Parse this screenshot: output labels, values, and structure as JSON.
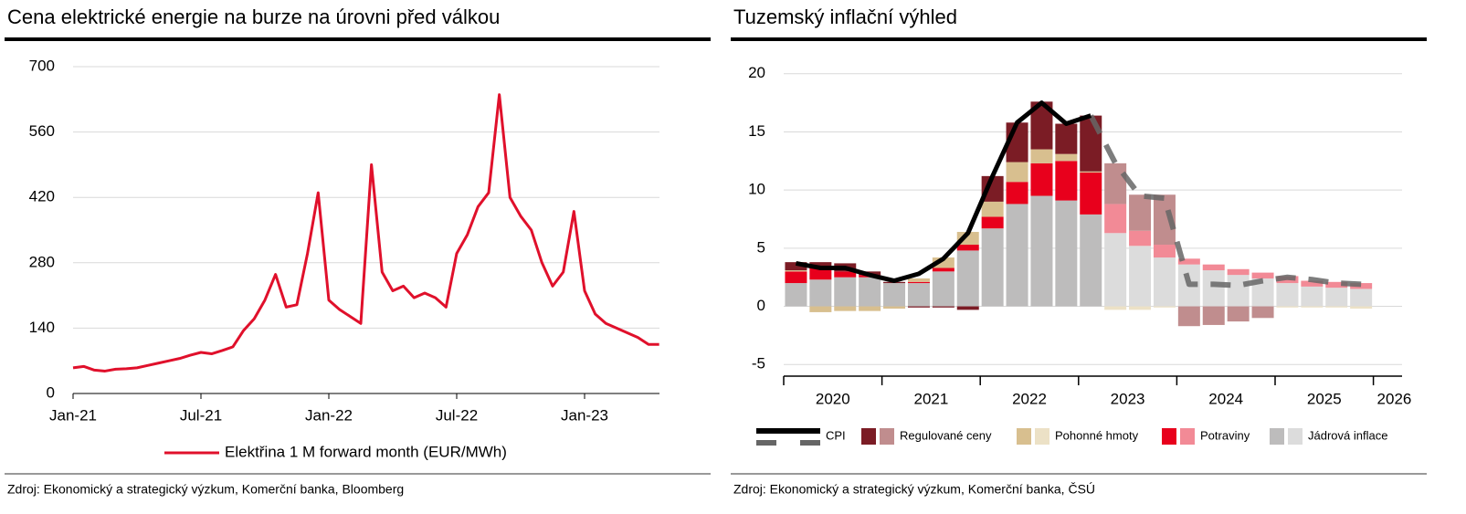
{
  "chart_data": [
    {
      "type": "line",
      "title": "Cena elektrické energie na burze na úrovni před válkou",
      "source": "Zdroj: Ekonomický a strategický výzkum, Komerční banka, Bloomberg",
      "categories": [
        "Jan-21",
        null,
        null,
        null,
        null,
        null,
        null,
        null,
        null,
        null,
        null,
        null,
        "Jul-21",
        null,
        null,
        null,
        null,
        null,
        null,
        null,
        null,
        null,
        null,
        null,
        "Jan-22",
        null,
        null,
        null,
        null,
        null,
        null,
        null,
        null,
        null,
        null,
        null,
        "Jul-22",
        null,
        null,
        null,
        null,
        null,
        null,
        null,
        null,
        null,
        null,
        null,
        "Jan-23",
        null,
        null,
        null,
        null,
        null,
        null,
        null
      ],
      "series": [
        {
          "name": "Elektřina 1 M forward month (EUR/MWh)",
          "color": "#e0102b",
          "values": [
            55,
            58,
            50,
            48,
            52,
            53,
            55,
            60,
            65,
            70,
            75,
            82,
            88,
            85,
            92,
            100,
            135,
            160,
            200,
            255,
            185,
            190,
            300,
            430,
            200,
            180,
            165,
            150,
            490,
            260,
            220,
            230,
            205,
            215,
            205,
            185,
            300,
            340,
            400,
            430,
            640,
            420,
            380,
            350,
            280,
            230,
            260,
            390,
            220,
            170,
            150,
            140,
            130,
            120,
            105,
            105
          ]
        }
      ],
      "ylim": [
        0,
        700
      ],
      "yticks": [
        0,
        140,
        280,
        420,
        560,
        700
      ],
      "grid": true
    },
    {
      "type": "stacked_bar_line",
      "title": "Tuzemský inflační výhled",
      "source": "Zdroj: Ekonomický a strategický výzkum, Komerční banka, ČSÚ",
      "year_labels": [
        "2020",
        "2021",
        "2022",
        "2023",
        "2024",
        "2025",
        "2026"
      ],
      "forecast_start": 13,
      "series": [
        {
          "name": "Jádrová inflace",
          "color": "#bdbcbc",
          "forecast_color": "#dcdcdc",
          "values": [
            2.0,
            2.3,
            2.5,
            2.5,
            2.0,
            2.0,
            3.0,
            4.8,
            6.7,
            8.8,
            9.5,
            9.1,
            7.9,
            6.3,
            5.2,
            4.2,
            3.6,
            3.1,
            2.7,
            2.4,
            2.0,
            1.7,
            1.6,
            1.5
          ]
        },
        {
          "name": "Potraviny",
          "color": "#e8001c",
          "forecast_color": "#f28a96",
          "values": [
            1.0,
            1.0,
            0.5,
            0.2,
            0.0,
            0.1,
            0.3,
            0.5,
            1.0,
            1.9,
            2.8,
            3.4,
            3.6,
            2.5,
            1.3,
            1.1,
            0.5,
            0.5,
            0.5,
            0.5,
            0.6,
            0.5,
            0.5,
            0.5
          ]
        },
        {
          "name": "Pohonné hmoty",
          "color": "#d8bf8f",
          "forecast_color": "#ece1c6",
          "values": [
            0.1,
            -0.5,
            -0.4,
            -0.4,
            -0.2,
            0.3,
            0.9,
            1.1,
            1.3,
            1.7,
            1.2,
            0.6,
            0.1,
            -0.3,
            -0.3,
            -0.1,
            0,
            0,
            0,
            0,
            -0.1,
            -0.1,
            -0.1,
            -0.2
          ]
        },
        {
          "name": "Regulované ceny",
          "color": "#7b1c25",
          "forecast_color": "#c08d8e",
          "values": [
            0.7,
            0.5,
            0.7,
            0.3,
            0.1,
            -0.1,
            -0.1,
            -0.3,
            2.2,
            3.4,
            4.1,
            2.6,
            4.8,
            3.5,
            3.1,
            4.3,
            -1.7,
            -1.6,
            -1.3,
            -1.0,
            0,
            0,
            0,
            0
          ]
        }
      ],
      "cpi": {
        "name": "CPI",
        "color": "#000000",
        "forecast_color": "#666666",
        "values": [
          3.7,
          3.3,
          3.3,
          2.7,
          2.2,
          2.8,
          4.1,
          6.3,
          11.2,
          15.8,
          17.5,
          15.7,
          16.4,
          null,
          null,
          null,
          null,
          null,
          null,
          null,
          null,
          null,
          null,
          null
        ],
        "forecast_values": [
          null,
          null,
          null,
          null,
          null,
          null,
          null,
          null,
          null,
          null,
          null,
          null,
          16.4,
          12.3,
          9.5,
          9.3,
          1.9,
          1.9,
          1.8,
          2.2,
          2.5,
          2.3,
          2.0,
          1.9
        ]
      },
      "ylim": [
        -6,
        21
      ],
      "yticks": [
        -5,
        0,
        5,
        10,
        15,
        20
      ],
      "grid": true
    }
  ]
}
